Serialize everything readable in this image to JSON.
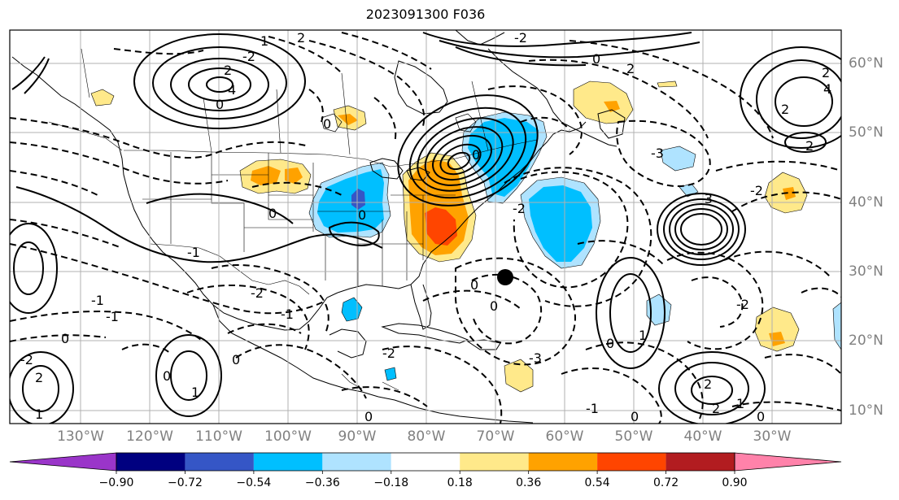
{
  "title": "2023091300 F036",
  "lon_labels": [
    "130°W",
    "120°W",
    "110°W",
    "100°W",
    "90°W",
    "80°W",
    "70°W",
    "60°W",
    "50°W",
    "40°W",
    "30°W"
  ],
  "lat_labels": [
    "60°N",
    "50°N",
    "40°N",
    "30°N",
    "20°N",
    "10°N"
  ],
  "colorbar": {
    "ticks": [
      "−0.90",
      "−0.72",
      "−0.54",
      "−0.36",
      "−0.18",
      "0.18",
      "0.36",
      "0.54",
      "0.72",
      "0.90"
    ],
    "colors": [
      "#9a35c9",
      "#000080",
      "#3556c6",
      "#00bfff",
      "#afe3ff",
      "#ffffff",
      "#ffe98a",
      "#ffa200",
      "#ff4500",
      "#b21c20",
      "#ff82aa"
    ]
  },
  "contour_labels": [
    "1",
    "2",
    "-2",
    "0",
    "2",
    "-2",
    "2",
    "2",
    "0",
    "-2",
    "-3",
    "-2",
    "-1",
    "2",
    "2",
    "-3",
    "-2",
    "0",
    "0",
    "-2",
    "-1",
    "-1",
    "0",
    "0",
    "0",
    "0",
    "1",
    "-1",
    "0",
    "0",
    "-2",
    "-3",
    "1",
    "-1",
    "0",
    "1",
    "0",
    "1",
    "2",
    "2",
    "2",
    "4",
    "0",
    "4",
    "-2",
    "0",
    "0"
  ],
  "marker": "black-dot"
}
